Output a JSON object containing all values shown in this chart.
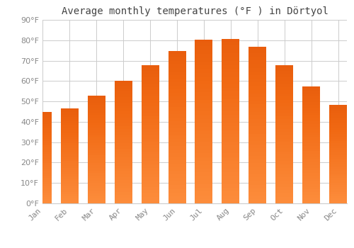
{
  "title": "Average monthly temperatures (°F ) in Dörtyol",
  "months": [
    "Jan",
    "Feb",
    "Mar",
    "Apr",
    "May",
    "Jun",
    "Jul",
    "Aug",
    "Sep",
    "Oct",
    "Nov",
    "Dec"
  ],
  "values": [
    44.5,
    46.5,
    52.5,
    60.0,
    67.5,
    74.5,
    80.0,
    80.5,
    76.5,
    67.5,
    57.0,
    48.0
  ],
  "bar_color_top": "#FDB827",
  "bar_color_bottom": "#F5A623",
  "background_color": "#ffffff",
  "grid_color": "#cccccc",
  "ylim": [
    0,
    90
  ],
  "yticks": [
    0,
    10,
    20,
    30,
    40,
    50,
    60,
    70,
    80,
    90
  ],
  "title_fontsize": 10,
  "tick_fontsize": 8,
  "tick_color": "#888888",
  "title_color": "#444444"
}
